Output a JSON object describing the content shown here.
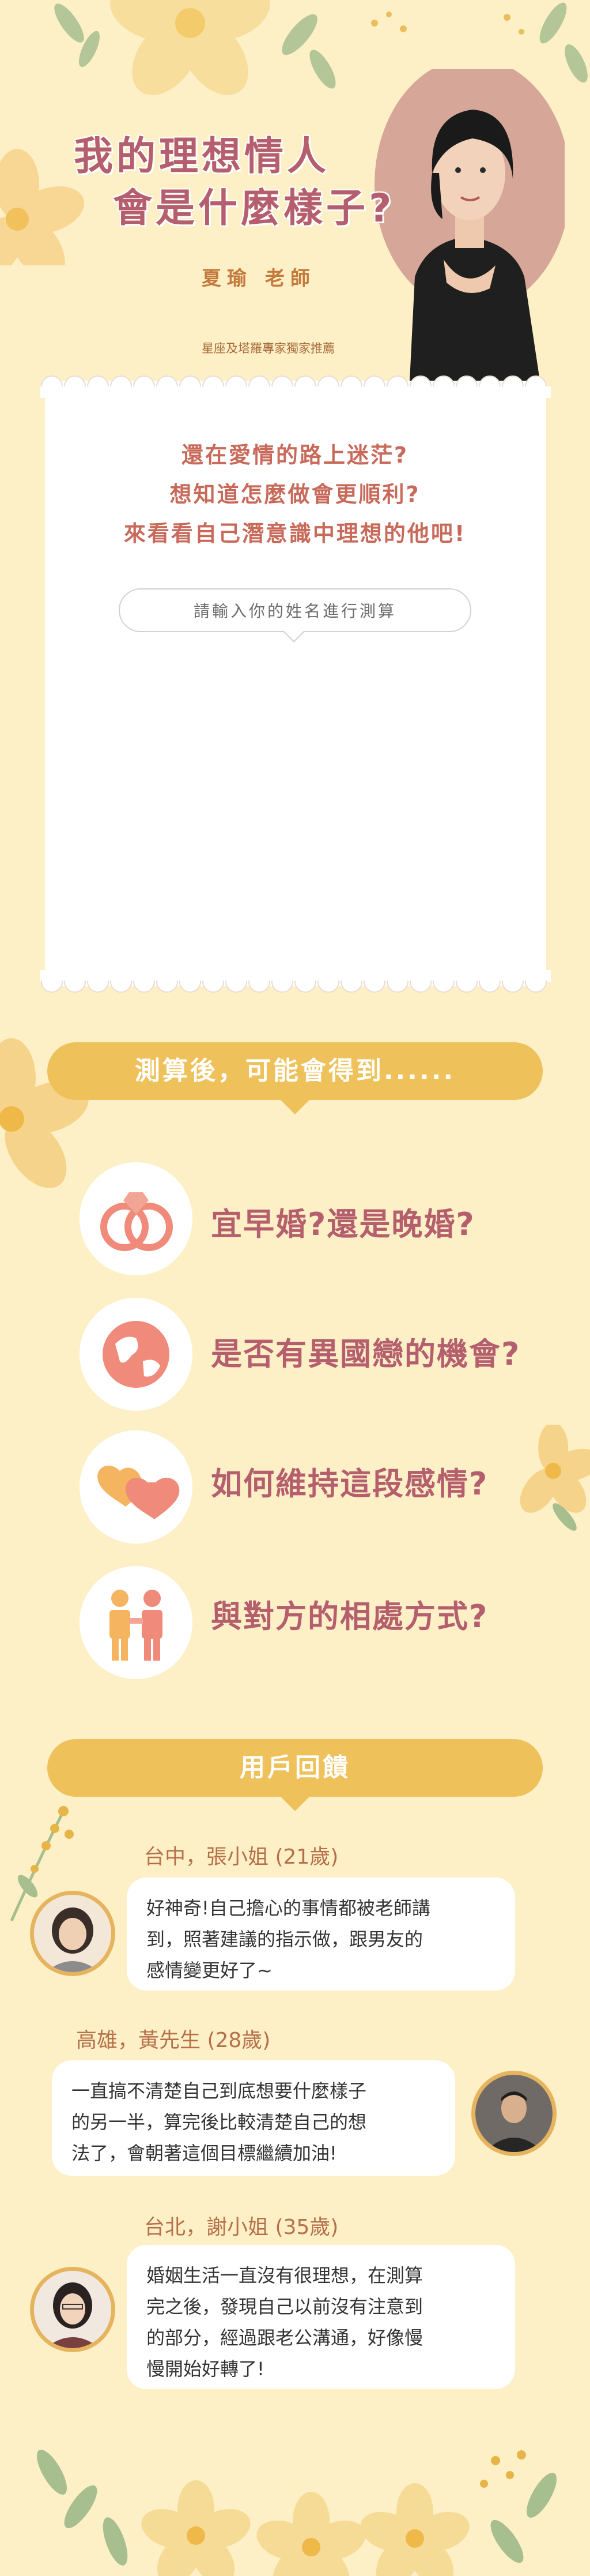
{
  "hero": {
    "title_line1": "我的理想情人",
    "title_line2": "會是什麼樣子?",
    "teacher_name": "夏瑜 老師",
    "teacher_subtitle": "星座及塔羅專家獨家推薦"
  },
  "intro": {
    "line1": "還在愛情的路上迷茫?",
    "line2": "想知道怎麼做會更順利?",
    "line3": "來看看自己潛意識中理想的他吧!"
  },
  "name_input": {
    "placeholder": "請輸入你的姓名進行測算"
  },
  "benefits": {
    "header": "測算後，可能會得到......",
    "items": [
      {
        "text": "宜早婚?還是晚婚?",
        "icon": "rings-icon"
      },
      {
        "text": "是否有異國戀的機會?",
        "icon": "globe-icon"
      },
      {
        "text": "如何維持這段感情?",
        "icon": "hearts-icon"
      },
      {
        "text": "與對方的相處方式?",
        "icon": "couple-icon"
      }
    ]
  },
  "feedback": {
    "header": "用戶回饋",
    "items": [
      {
        "label": "台中，張小姐 (21歲)",
        "lines": [
          "好神奇!自己擔心的事情都被老師講",
          "到，照著建議的指示做，跟男友的",
          "感情變更好了~"
        ]
      },
      {
        "label": "高雄，黃先生 (28歲)",
        "lines": [
          "一直搞不清楚自己到底想要什麼樣子",
          "的另一半，算完後比較清楚自己的想",
          "法了，會朝著這個目標繼續加油!"
        ]
      },
      {
        "label": "台北，謝小姐 (35歲)",
        "lines": [
          "婚姻生活一直沒有很理想，在測算",
          "完之後，發現自己以前沒有注意到",
          "的部分，經過跟老公溝通，好像慢",
          "慢開始好轉了!"
        ]
      }
    ]
  },
  "colors": {
    "background": "#FDF0C6",
    "accent_yellow": "#EEC15A",
    "title_rose": "#B55F6E",
    "icon_coral": "#F08A7A"
  }
}
